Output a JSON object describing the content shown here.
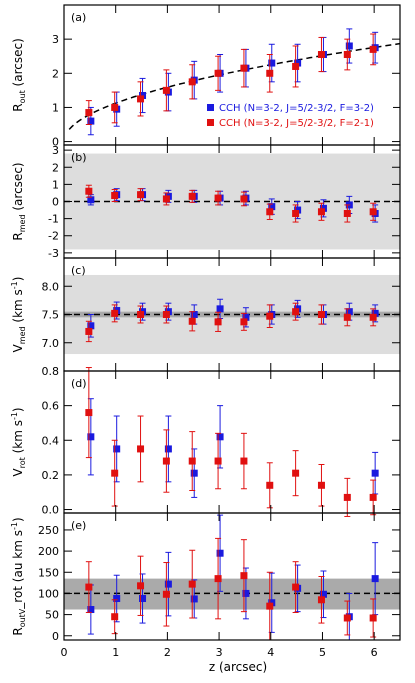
{
  "x_axis": {
    "label": "z (arcsec)",
    "ticks": [
      "0",
      "1",
      "2",
      "3",
      "4",
      "5",
      "6"
    ]
  },
  "colors": {
    "blue": "#1a1adf",
    "red": "#e01010",
    "band_light": "#dddddd",
    "band_dark": "#aaaaaa"
  },
  "chart_data": [
    {
      "panel": "(a)",
      "type": "scatter",
      "ylabel": "R_out (arcsec)",
      "xlim": [
        0,
        6.5
      ],
      "ylim": [
        -0.1,
        4.0
      ],
      "yticks": [
        0,
        1,
        2,
        3
      ],
      "legend": {
        "placement": "lower right",
        "entries": [
          "CCH (N=3-2, J=5/2-3/2, F=3-2)",
          "CCH (N=3-2, J=5/2-3/2, F=2-1)"
        ]
      },
      "model_curve": {
        "style": "dashed",
        "x_range": [
          0.1,
          6.5
        ],
        "form": "sqrt"
      },
      "series": [
        {
          "name": "CCH (N=3-2, J=5/2-3/2, F=3-2)",
          "color": "blue",
          "x": [
            0.5,
            1.0,
            1.5,
            2.0,
            2.5,
            3.0,
            3.5,
            4.0,
            4.5,
            5.0,
            5.5,
            6.0
          ],
          "y": [
            0.6,
            0.95,
            1.35,
            1.45,
            1.8,
            2.0,
            2.15,
            2.3,
            2.3,
            2.55,
            2.8,
            2.75
          ],
          "err": [
            0.4,
            0.5,
            0.5,
            0.55,
            0.55,
            0.55,
            0.55,
            0.55,
            0.55,
            0.5,
            0.5,
            0.45
          ]
        },
        {
          "name": "CCH (N=3-2, J=5/2-3/2, F=2-1)",
          "color": "red",
          "x": [
            0.5,
            1.0,
            1.5,
            2.0,
            2.5,
            3.0,
            3.5,
            4.0,
            4.5,
            5.0,
            5.5,
            6.0
          ],
          "y": [
            0.85,
            1.0,
            1.25,
            1.5,
            1.75,
            2.0,
            2.15,
            2.0,
            2.2,
            2.55,
            2.55,
            2.7
          ],
          "err": [
            0.35,
            0.45,
            0.5,
            0.6,
            0.5,
            0.5,
            0.55,
            0.55,
            0.6,
            0.5,
            0.45,
            0.45
          ]
        }
      ]
    },
    {
      "panel": "(b)",
      "type": "scatter",
      "ylabel": "R_med (arcsec)",
      "xlim": [
        0,
        6.5
      ],
      "ylim": [
        -3.3,
        3.3
      ],
      "yticks": [
        -3,
        -2,
        -1,
        0,
        1,
        2,
        3
      ],
      "band_light": [
        -2.8,
        2.8
      ],
      "reference_line": 0,
      "series": [
        {
          "name": "CCH (N=3-2, J=5/2-3/2, F=3-2)",
          "color": "blue",
          "x": [
            0.5,
            1.0,
            1.5,
            2.0,
            2.5,
            3.0,
            3.5,
            4.0,
            4.5,
            5.0,
            5.5,
            6.0
          ],
          "y": [
            0.1,
            0.4,
            0.4,
            0.3,
            0.3,
            0.2,
            0.2,
            -0.3,
            -0.5,
            -0.4,
            -0.2,
            -0.7
          ],
          "err": [
            0.3,
            0.35,
            0.35,
            0.35,
            0.35,
            0.4,
            0.4,
            0.45,
            0.5,
            0.5,
            0.5,
            0.5
          ]
        },
        {
          "name": "CCH (N=3-2, J=5/2-3/2, F=2-1)",
          "color": "red",
          "x": [
            0.5,
            1.0,
            1.5,
            2.0,
            2.5,
            3.0,
            3.5,
            4.0,
            4.5,
            5.0,
            5.5,
            6.0
          ],
          "y": [
            0.6,
            0.35,
            0.4,
            0.15,
            0.3,
            0.2,
            0.15,
            -0.6,
            -0.7,
            -0.6,
            -0.7,
            -0.6
          ],
          "err": [
            0.35,
            0.35,
            0.35,
            0.35,
            0.35,
            0.4,
            0.4,
            0.45,
            0.5,
            0.5,
            0.5,
            0.5
          ]
        }
      ]
    },
    {
      "panel": "(c)",
      "type": "scatter",
      "ylabel": "V_med (km s^-1)",
      "xlim": [
        0,
        6.5
      ],
      "ylim": [
        6.5,
        8.5
      ],
      "yticks": [
        7.0,
        7.5,
        8.0
      ],
      "band_light": [
        6.8,
        8.2
      ],
      "band_dark": [
        7.45,
        7.55
      ],
      "reference_line": 7.5,
      "series": [
        {
          "name": "CCH (N=3-2, J=5/2-3/2, F=3-2)",
          "color": "blue",
          "x": [
            0.5,
            1.0,
            1.5,
            2.0,
            2.5,
            3.0,
            3.5,
            4.0,
            4.5,
            5.0,
            5.5,
            6.0
          ],
          "y": [
            7.3,
            7.57,
            7.55,
            7.55,
            7.5,
            7.6,
            7.45,
            7.5,
            7.6,
            7.5,
            7.55,
            7.52
          ],
          "err": [
            0.2,
            0.15,
            0.15,
            0.15,
            0.17,
            0.17,
            0.17,
            0.17,
            0.15,
            0.17,
            0.15,
            0.15
          ]
        },
        {
          "name": "CCH (N=3-2, J=5/2-3/2, F=2-1)",
          "color": "red",
          "x": [
            0.5,
            1.0,
            1.5,
            2.0,
            2.5,
            3.0,
            3.5,
            4.0,
            4.5,
            5.0,
            5.5,
            6.0
          ],
          "y": [
            7.2,
            7.52,
            7.5,
            7.5,
            7.38,
            7.37,
            7.37,
            7.47,
            7.55,
            7.5,
            7.45,
            7.45
          ],
          "err": [
            0.18,
            0.15,
            0.15,
            0.15,
            0.17,
            0.17,
            0.15,
            0.2,
            0.15,
            0.17,
            0.15,
            0.15
          ]
        }
      ]
    },
    {
      "panel": "(d)",
      "type": "scatter",
      "ylabel": "V_rot (km s^-1)",
      "xlim": [
        0,
        6.5
      ],
      "ylim": [
        -0.02,
        0.8
      ],
      "yticks": [
        0.0,
        0.2,
        0.4,
        0.6,
        0.8
      ],
      "series": [
        {
          "name": "CCH (N=3-2, J=5/2-3/2, F=3-2)",
          "color": "blue",
          "x": [
            0.5,
            1.0,
            2.0,
            2.5,
            3.0,
            6.0
          ],
          "y": [
            0.42,
            0.35,
            0.35,
            0.21,
            0.42,
            0.21
          ],
          "err": [
            0.22,
            0.19,
            0.19,
            0.14,
            0.18,
            0.12
          ]
        },
        {
          "name": "CCH (N=3-2, J=5/2-3/2, F=2-1)",
          "color": "red",
          "x": [
            0.5,
            1.0,
            1.5,
            2.0,
            2.5,
            3.0,
            3.5,
            4.0,
            4.5,
            5.0,
            5.5,
            6.0
          ],
          "y": [
            0.56,
            0.21,
            0.35,
            0.28,
            0.28,
            0.28,
            0.28,
            0.14,
            0.21,
            0.14,
            0.07,
            0.07
          ],
          "err": [
            0.26,
            0.19,
            0.19,
            0.18,
            0.17,
            0.16,
            0.16,
            0.13,
            0.13,
            0.12,
            0.11,
            0.1
          ]
        }
      ]
    },
    {
      "panel": "(e)",
      "type": "scatter",
      "ylabel": "R_out V_rot (au km s^-1)",
      "xlim": [
        0,
        6.5
      ],
      "ylim": [
        -10,
        290
      ],
      "yticks": [
        0,
        50,
        100,
        150,
        200,
        250
      ],
      "band_dark": [
        62,
        135
      ],
      "reference_line": 100,
      "series": [
        {
          "name": "CCH (N=3-2, J=5/2-3/2, F=3-2)",
          "color": "blue",
          "x": [
            0.5,
            1.0,
            1.5,
            2.0,
            2.5,
            3.0,
            3.5,
            4.0,
            4.5,
            5.0,
            5.5,
            6.0
          ],
          "y": [
            62,
            88,
            88,
            122,
            87,
            195,
            100,
            78,
            112,
            98,
            45,
            135
          ],
          "err": [
            58,
            55,
            58,
            75,
            45,
            90,
            60,
            70,
            55,
            55,
            55,
            85
          ]
        },
        {
          "name": "CCH (N=3-2, J=5/2-3/2, F=2-1)",
          "color": "red",
          "x": [
            0.5,
            1.0,
            1.5,
            2.0,
            2.5,
            3.0,
            3.5,
            4.0,
            4.5,
            5.0,
            5.5,
            6.0
          ],
          "y": [
            115,
            45,
            118,
            98,
            122,
            135,
            142,
            70,
            115,
            85,
            42,
            42
          ],
          "err": [
            60,
            40,
            70,
            75,
            80,
            95,
            85,
            80,
            60,
            55,
            40,
            45
          ]
        }
      ]
    }
  ]
}
